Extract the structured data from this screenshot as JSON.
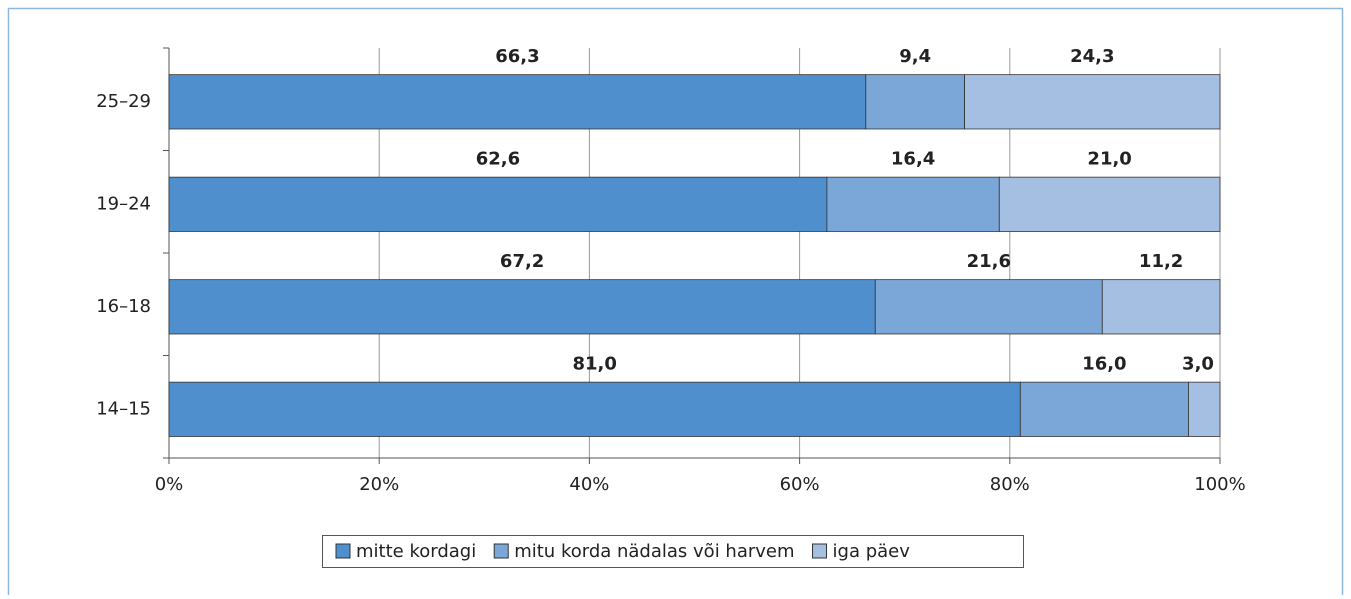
{
  "chart_data": {
    "type": "stacked-bar-horizontal",
    "categories": [
      "25–29",
      "19–24",
      "16–18",
      "14–15"
    ],
    "series": [
      {
        "name": "mitte kordagi",
        "color": "#4f8fce",
        "values": [
          66.3,
          62.6,
          67.2,
          81.0
        ],
        "value_labels": [
          "66,3",
          "62,6",
          "67,2",
          "81,0"
        ]
      },
      {
        "name": "mitu korda nädalas või harvem",
        "color": "#7ba7d8",
        "values": [
          9.4,
          16.4,
          21.6,
          16.0
        ],
        "value_labels": [
          "9,4",
          "16,4",
          "21,6",
          "16,0"
        ]
      },
      {
        "name": "iga päev",
        "color": "#a5bfe3",
        "values": [
          24.3,
          21.0,
          11.2,
          3.0
        ],
        "value_labels": [
          "24,3",
          "21,0",
          "11,2",
          "3,0"
        ]
      }
    ],
    "xlim": [
      0,
      100
    ],
    "xticks": [
      {
        "value": 0,
        "label": "0%"
      },
      {
        "value": 20,
        "label": "20%"
      },
      {
        "value": 40,
        "label": "40%"
      },
      {
        "value": 60,
        "label": "60%"
      },
      {
        "value": 80,
        "label": "80%"
      },
      {
        "value": 100,
        "label": "100%"
      }
    ],
    "grid": true,
    "legend": "bottom"
  }
}
